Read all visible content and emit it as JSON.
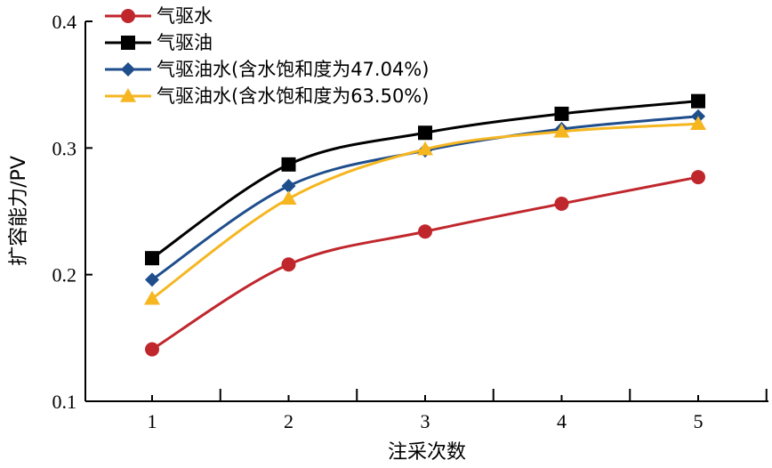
{
  "chart_data": {
    "type": "line",
    "x": [
      1,
      2,
      3,
      4,
      5
    ],
    "xlabel": "注采次数",
    "ylabel": "扩容能力/PV",
    "ylim": [
      0.1,
      0.4
    ],
    "yticks": [
      "0.1",
      "0.2",
      "0.3",
      "0.4"
    ],
    "xticks": [
      "1",
      "2",
      "3",
      "4",
      "5"
    ],
    "grid": false,
    "legend_position": "top-left",
    "series": [
      {
        "name": "气驱水",
        "values": [
          0.141,
          0.208,
          0.234,
          0.256,
          0.277
        ],
        "color": "#c0272d",
        "marker": "circle"
      },
      {
        "name": "气驱油",
        "values": [
          0.213,
          0.287,
          0.312,
          0.327,
          0.337
        ],
        "color": "#000000",
        "marker": "square"
      },
      {
        "name": "气驱油水(含水饱和度为47.04%)",
        "values": [
          0.196,
          0.27,
          0.298,
          0.315,
          0.325
        ],
        "color": "#1f4e8c",
        "marker": "diamond"
      },
      {
        "name": "气驱油水(含水饱和度为63.50%)",
        "values": [
          0.181,
          0.26,
          0.299,
          0.313,
          0.319
        ],
        "color": "#f5b620",
        "marker": "triangle"
      }
    ]
  }
}
